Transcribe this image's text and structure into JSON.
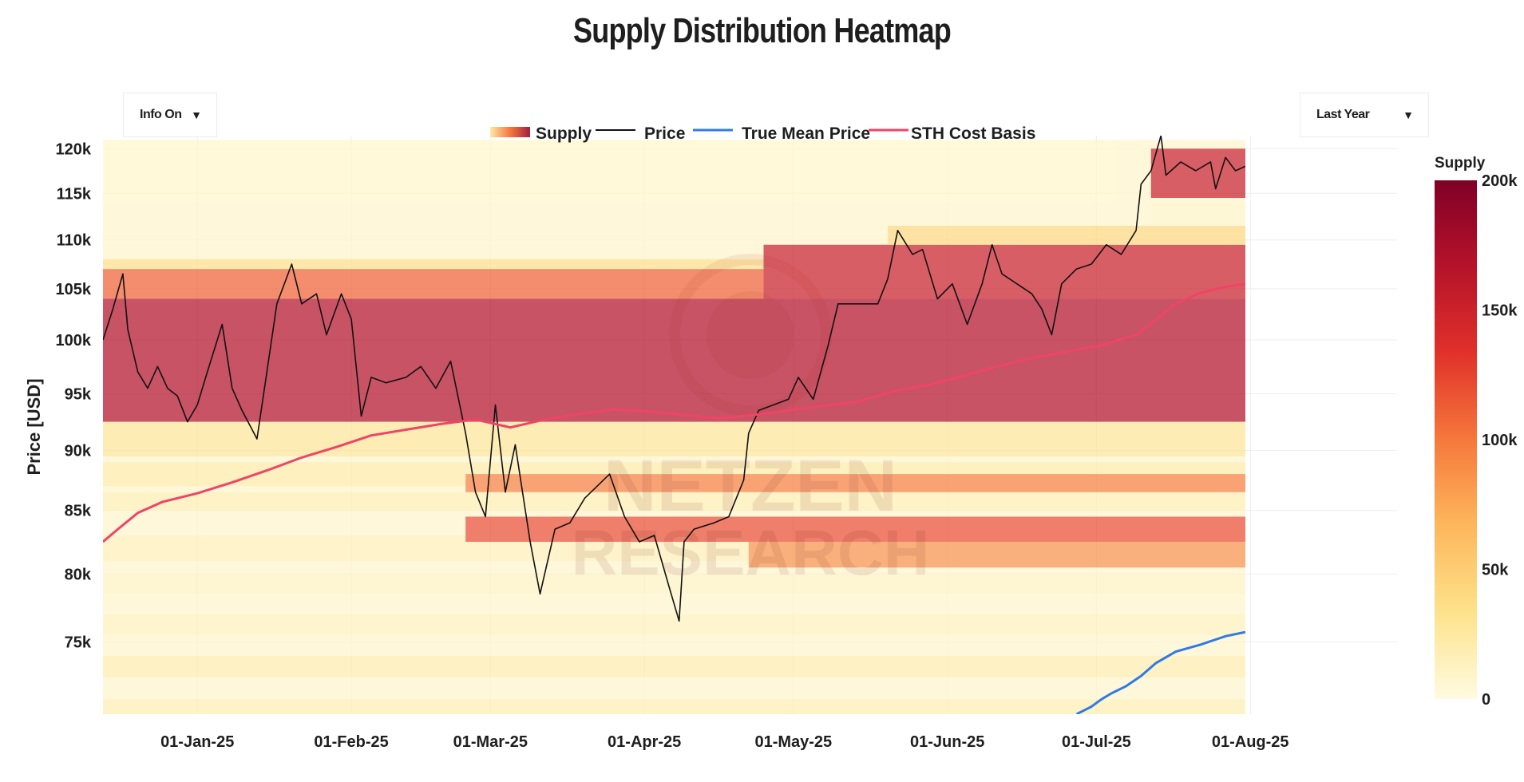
{
  "chart_data": {
    "type": "heatmap",
    "title": "Supply Distribution Heatmap",
    "ylabel": "Price [USD]",
    "xlabel": "",
    "x_range": [
      "2024-12-13",
      "2025-07-31"
    ],
    "ylim": [
      70000,
      121500
    ],
    "y_scale": "log",
    "y_ticks": [
      {
        "value": 75000,
        "label": "75k"
      },
      {
        "value": 80000,
        "label": "80k"
      },
      {
        "value": 85000,
        "label": "85k"
      },
      {
        "value": 90000,
        "label": "90k"
      },
      {
        "value": 95000,
        "label": "95k"
      },
      {
        "value": 100000,
        "label": "100k"
      },
      {
        "value": 105000,
        "label": "105k"
      },
      {
        "value": 110000,
        "label": "110k"
      },
      {
        "value": 115000,
        "label": "115k"
      },
      {
        "value": 120000,
        "label": "120k"
      }
    ],
    "x_ticks": [
      {
        "value": "2025-01-01",
        "label": "01-Jan-25"
      },
      {
        "value": "2025-02-01",
        "label": "01-Feb-25"
      },
      {
        "value": "2025-03-01",
        "label": "01-Mar-25"
      },
      {
        "value": "2025-04-01",
        "label": "01-Apr-25"
      },
      {
        "value": "2025-05-01",
        "label": "01-May-25"
      },
      {
        "value": "2025-06-01",
        "label": "01-Jun-25"
      },
      {
        "value": "2025-07-01",
        "label": "01-Jul-25"
      },
      {
        "value": "2025-08-01",
        "label": "01-Aug-25"
      }
    ],
    "legend": [
      "Supply",
      "Price",
      "True Mean Price",
      "STH Cost Basis"
    ],
    "legend_position": "top-center",
    "colorbar": {
      "title": "Supply",
      "min": 0,
      "max": 200000,
      "ticks": [
        {
          "value": 0,
          "label": "0"
        },
        {
          "value": 50000,
          "label": "50k"
        },
        {
          "value": 100000,
          "label": "100k"
        },
        {
          "value": 150000,
          "label": "150k"
        },
        {
          "value": 200000,
          "label": "200k"
        }
      ],
      "colors": [
        "#fffbe0",
        "#fde28a",
        "#fdb55a",
        "#f6783c",
        "#e0302a",
        "#b4122a",
        "#800026"
      ]
    },
    "supply_bands": [
      {
        "start": "2024-12-13",
        "end": "2025-07-31",
        "low": 70000,
        "high": 121000,
        "supply": 8000
      },
      {
        "start": "2024-12-13",
        "end": "2025-07-31",
        "low": 70000,
        "high": 71000,
        "supply": 18000
      },
      {
        "start": "2024-12-13",
        "end": "2025-07-31",
        "low": 72500,
        "high": 74000,
        "supply": 20000
      },
      {
        "start": "2024-12-13",
        "end": "2025-07-31",
        "low": 75500,
        "high": 77000,
        "supply": 14000
      },
      {
        "start": "2024-12-13",
        "end": "2025-07-31",
        "low": 78500,
        "high": 80000,
        "supply": 12000
      },
      {
        "start": "2024-12-13",
        "end": "2025-07-31",
        "low": 81000,
        "high": 83000,
        "supply": 16000
      },
      {
        "start": "2024-12-13",
        "end": "2025-07-31",
        "low": 85000,
        "high": 86500,
        "supply": 18000
      },
      {
        "start": "2024-12-13",
        "end": "2025-07-31",
        "low": 87000,
        "high": 89000,
        "supply": 22000
      },
      {
        "start": "2024-12-13",
        "end": "2025-07-31",
        "low": 89500,
        "high": 92500,
        "supply": 28000
      },
      {
        "start": "2024-12-13",
        "end": "2025-07-31",
        "low": 92500,
        "high": 104000,
        "supply": 168000
      },
      {
        "start": "2024-12-13",
        "end": "2025-04-25",
        "low": 104000,
        "high": 107000,
        "supply": 110000
      },
      {
        "start": "2024-12-13",
        "end": "2025-04-25",
        "low": 107000,
        "high": 108000,
        "supply": 35000
      },
      {
        "start": "2025-02-24",
        "end": "2025-07-31",
        "low": 86500,
        "high": 88000,
        "supply": 95000
      },
      {
        "start": "2025-02-24",
        "end": "2025-07-31",
        "low": 82500,
        "high": 84500,
        "supply": 120000
      },
      {
        "start": "2025-04-22",
        "end": "2025-07-31",
        "low": 80500,
        "high": 82500,
        "supply": 85000
      },
      {
        "start": "2025-04-25",
        "end": "2025-07-31",
        "low": 104000,
        "high": 109500,
        "supply": 150000
      },
      {
        "start": "2025-05-20",
        "end": "2025-07-31",
        "low": 109500,
        "high": 111500,
        "supply": 40000
      },
      {
        "start": "2025-07-12",
        "end": "2025-07-31",
        "low": 114500,
        "high": 120000,
        "supply": 150000
      },
      {
        "start": "2025-07-12",
        "end": "2025-07-31",
        "low": 111500,
        "high": 114000,
        "supply": 10000
      }
    ],
    "series": [
      {
        "name": "Price",
        "color": "#111111",
        "points": [
          [
            "2024-12-13",
            100000
          ],
          [
            "2024-12-15",
            103000
          ],
          [
            "2024-12-17",
            106500
          ],
          [
            "2024-12-18",
            101000
          ],
          [
            "2024-12-20",
            97000
          ],
          [
            "2024-12-22",
            95500
          ],
          [
            "2024-12-24",
            97500
          ],
          [
            "2024-12-26",
            95500
          ],
          [
            "2024-12-28",
            94800
          ],
          [
            "2024-12-30",
            92500
          ],
          [
            "2025-01-01",
            94000
          ],
          [
            "2025-01-03",
            97000
          ],
          [
            "2025-01-06",
            101500
          ],
          [
            "2025-01-08",
            95500
          ],
          [
            "2025-01-10",
            93500
          ],
          [
            "2025-01-13",
            91000
          ],
          [
            "2025-01-15",
            97000
          ],
          [
            "2025-01-17",
            103500
          ],
          [
            "2025-01-20",
            107500
          ],
          [
            "2025-01-22",
            103500
          ],
          [
            "2025-01-25",
            104500
          ],
          [
            "2025-01-27",
            100500
          ],
          [
            "2025-01-30",
            104500
          ],
          [
            "2025-02-01",
            102000
          ],
          [
            "2025-02-03",
            93000
          ],
          [
            "2025-02-05",
            96500
          ],
          [
            "2025-02-08",
            96000
          ],
          [
            "2025-02-12",
            96500
          ],
          [
            "2025-02-15",
            97500
          ],
          [
            "2025-02-18",
            95500
          ],
          [
            "2025-02-21",
            98000
          ],
          [
            "2025-02-24",
            91500
          ],
          [
            "2025-02-26",
            86500
          ],
          [
            "2025-02-28",
            84500
          ],
          [
            "2025-03-02",
            94000
          ],
          [
            "2025-03-04",
            86500
          ],
          [
            "2025-03-06",
            90500
          ],
          [
            "2025-03-09",
            82500
          ],
          [
            "2025-03-11",
            78500
          ],
          [
            "2025-03-14",
            83500
          ],
          [
            "2025-03-17",
            84000
          ],
          [
            "2025-03-20",
            86000
          ],
          [
            "2025-03-25",
            88000
          ],
          [
            "2025-03-28",
            84500
          ],
          [
            "2025-03-31",
            82500
          ],
          [
            "2025-04-03",
            83000
          ],
          [
            "2025-04-06",
            79000
          ],
          [
            "2025-04-08",
            76500
          ],
          [
            "2025-04-09",
            82500
          ],
          [
            "2025-04-11",
            83500
          ],
          [
            "2025-04-15",
            84000
          ],
          [
            "2025-04-18",
            84500
          ],
          [
            "2025-04-21",
            87500
          ],
          [
            "2025-04-22",
            91500
          ],
          [
            "2025-04-24",
            93500
          ],
          [
            "2025-04-27",
            94000
          ],
          [
            "2025-04-30",
            94500
          ],
          [
            "2025-05-02",
            96500
          ],
          [
            "2025-05-05",
            94500
          ],
          [
            "2025-05-08",
            99500
          ],
          [
            "2025-05-10",
            103500
          ],
          [
            "2025-05-14",
            103500
          ],
          [
            "2025-05-18",
            103500
          ],
          [
            "2025-05-20",
            106000
          ],
          [
            "2025-05-22",
            111000
          ],
          [
            "2025-05-25",
            108500
          ],
          [
            "2025-05-27",
            109000
          ],
          [
            "2025-05-30",
            104000
          ],
          [
            "2025-06-02",
            105500
          ],
          [
            "2025-06-05",
            101500
          ],
          [
            "2025-06-08",
            105500
          ],
          [
            "2025-06-10",
            109500
          ],
          [
            "2025-06-12",
            106500
          ],
          [
            "2025-06-15",
            105500
          ],
          [
            "2025-06-18",
            104500
          ],
          [
            "2025-06-20",
            103000
          ],
          [
            "2025-06-22",
            100500
          ],
          [
            "2025-06-24",
            105500
          ],
          [
            "2025-06-27",
            107000
          ],
          [
            "2025-06-30",
            107500
          ],
          [
            "2025-07-03",
            109500
          ],
          [
            "2025-07-06",
            108500
          ],
          [
            "2025-07-09",
            111000
          ],
          [
            "2025-07-10",
            116000
          ],
          [
            "2025-07-12",
            117500
          ],
          [
            "2025-07-14",
            121500
          ],
          [
            "2025-07-15",
            117000
          ],
          [
            "2025-07-18",
            118500
          ],
          [
            "2025-07-21",
            117500
          ],
          [
            "2025-07-24",
            118500
          ],
          [
            "2025-07-25",
            115500
          ],
          [
            "2025-07-27",
            119000
          ],
          [
            "2025-07-29",
            117500
          ],
          [
            "2025-07-31",
            118000
          ]
        ]
      },
      {
        "name": "STH Cost Basis",
        "color": "#f04466",
        "points": [
          [
            "2024-12-13",
            82500
          ],
          [
            "2024-12-16",
            83500
          ],
          [
            "2024-12-20",
            84800
          ],
          [
            "2024-12-25",
            85700
          ],
          [
            "2025-01-01",
            86400
          ],
          [
            "2025-01-08",
            87300
          ],
          [
            "2025-01-15",
            88300
          ],
          [
            "2025-01-22",
            89400
          ],
          [
            "2025-01-29",
            90300
          ],
          [
            "2025-02-05",
            91300
          ],
          [
            "2025-02-12",
            91800
          ],
          [
            "2025-02-19",
            92300
          ],
          [
            "2025-02-26",
            92700
          ],
          [
            "2025-03-05",
            92000
          ],
          [
            "2025-03-12",
            92700
          ],
          [
            "2025-03-19",
            93200
          ],
          [
            "2025-03-26",
            93600
          ],
          [
            "2025-04-02",
            93400
          ],
          [
            "2025-04-09",
            93100
          ],
          [
            "2025-04-16",
            92800
          ],
          [
            "2025-04-23",
            93100
          ],
          [
            "2025-04-30",
            93500
          ],
          [
            "2025-05-07",
            93900
          ],
          [
            "2025-05-14",
            94300
          ],
          [
            "2025-05-21",
            95200
          ],
          [
            "2025-05-28",
            95800
          ],
          [
            "2025-06-04",
            96600
          ],
          [
            "2025-06-11",
            97500
          ],
          [
            "2025-06-18",
            98300
          ],
          [
            "2025-06-25",
            98900
          ],
          [
            "2025-07-02",
            99500
          ],
          [
            "2025-07-09",
            100500
          ],
          [
            "2025-07-13",
            102000
          ],
          [
            "2025-07-17",
            103500
          ],
          [
            "2025-07-22",
            104600
          ],
          [
            "2025-07-27",
            105200
          ],
          [
            "2025-07-31",
            105500
          ]
        ]
      },
      {
        "name": "True Mean Price",
        "color": "#2f7be5",
        "points": [
          [
            "2025-06-27",
            70000
          ],
          [
            "2025-06-30",
            70500
          ],
          [
            "2025-07-02",
            71000
          ],
          [
            "2025-07-04",
            71400
          ],
          [
            "2025-07-07",
            71900
          ],
          [
            "2025-07-10",
            72600
          ],
          [
            "2025-07-13",
            73500
          ],
          [
            "2025-07-17",
            74300
          ],
          [
            "2025-07-22",
            74800
          ],
          [
            "2025-07-27",
            75400
          ],
          [
            "2025-07-31",
            75700
          ]
        ]
      }
    ]
  }
}
